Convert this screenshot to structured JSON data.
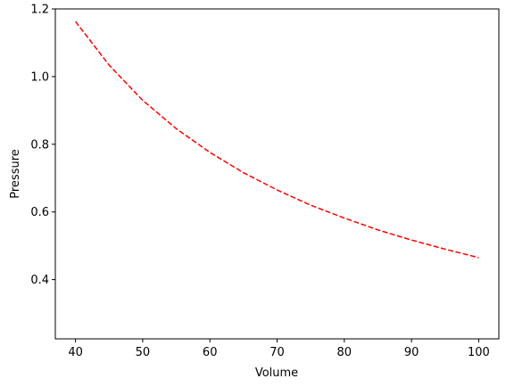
{
  "chart_data": {
    "type": "line",
    "title": "",
    "xlabel": "Volume",
    "ylabel": "Pressure",
    "xlim": [
      37,
      103
    ],
    "ylim": [
      0.225,
      1.2
    ],
    "xticks": [
      40,
      50,
      60,
      70,
      80,
      90,
      100
    ],
    "xtick_labels": [
      "40",
      "50",
      "60",
      "70",
      "80",
      "90",
      "100"
    ],
    "yticks": [
      0.4,
      0.6,
      0.8,
      1.0,
      1.2
    ],
    "ytick_labels": [
      "0.4",
      "0.6",
      "0.8",
      "1.0",
      "1.2"
    ],
    "grid": false,
    "legend": "none",
    "series": [
      {
        "line_style": "dashed",
        "color": "#ff0000",
        "x": [
          40,
          45,
          50,
          55,
          60,
          65,
          70,
          75,
          80,
          85,
          90,
          95,
          100
        ],
        "y": [
          1.163,
          1.034,
          0.93,
          0.846,
          0.776,
          0.716,
          0.665,
          0.62,
          0.582,
          0.547,
          0.517,
          0.49,
          0.465
        ]
      }
    ]
  }
}
